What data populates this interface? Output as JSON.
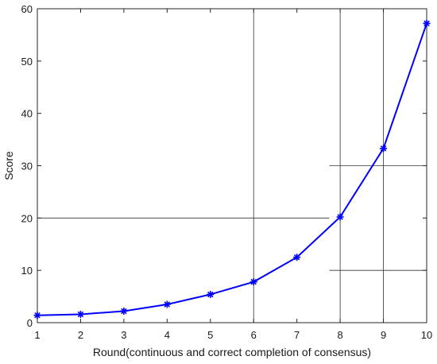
{
  "chart_data": {
    "type": "line",
    "title": "",
    "xlabel": "Round(continuous and correct completion of consensus)",
    "ylabel": "Score",
    "xlim": [
      1,
      10
    ],
    "ylim": [
      0,
      60
    ],
    "x_ticks": [
      1,
      2,
      3,
      4,
      5,
      6,
      7,
      8,
      9,
      10
    ],
    "y_ticks": [
      0,
      10,
      20,
      30,
      40,
      50,
      60
    ],
    "grid": false,
    "legend": "none",
    "series": [
      {
        "marker": "asterisk",
        "color": "#0000ff",
        "x": [
          1,
          2,
          3,
          4,
          5,
          6,
          7,
          8,
          9,
          10
        ],
        "values": [
          1.4,
          1.6,
          2.2,
          3.5,
          5.4,
          7.8,
          12.5,
          20.2,
          33.3,
          57.2
        ]
      }
    ],
    "reference_lines": {
      "color": "#333333",
      "vertical": [
        {
          "x": 6,
          "y_from": 0,
          "y_to": 60
        },
        {
          "x": 8,
          "y_from": 0,
          "y_to": 60
        },
        {
          "x": 9,
          "y_from": 0,
          "y_to": 60
        }
      ],
      "horizontal": [
        {
          "y": 20,
          "x_from": 1,
          "x_to": 7.75
        },
        {
          "y": 30,
          "x_from": 7.75,
          "x_to": 10
        },
        {
          "y": 10,
          "x_from": 7.75,
          "x_to": 10
        }
      ]
    }
  }
}
